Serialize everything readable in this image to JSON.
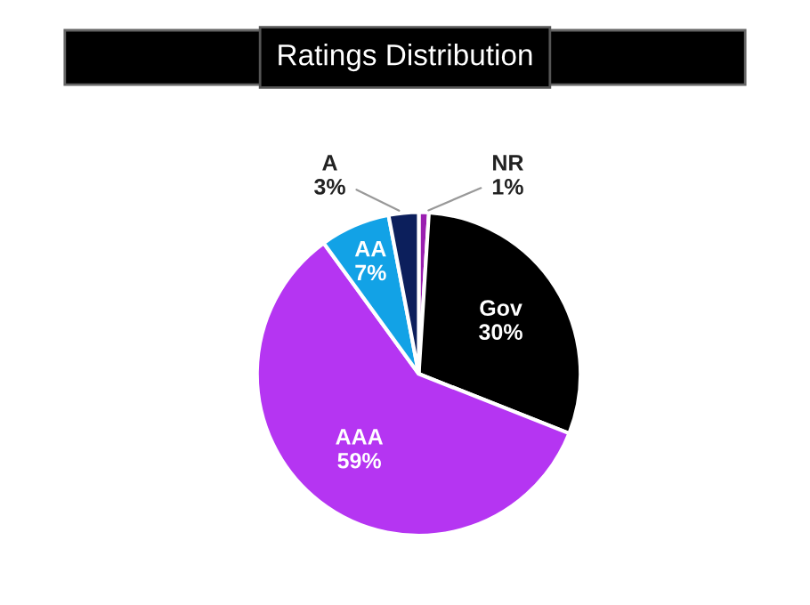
{
  "chart_data": {
    "type": "pie",
    "title": "Ratings Distribution",
    "categories": [
      "NR",
      "Gov",
      "AAA",
      "AA",
      "A"
    ],
    "values": [
      1,
      30,
      59,
      7,
      3
    ],
    "value_labels": [
      "1%",
      "30%",
      "59%",
      "7%",
      "3%"
    ],
    "colors": [
      "#9a1fb0",
      "#000000",
      "#b535f2",
      "#12a2e6",
      "#0c1f5c"
    ],
    "legend": false
  }
}
